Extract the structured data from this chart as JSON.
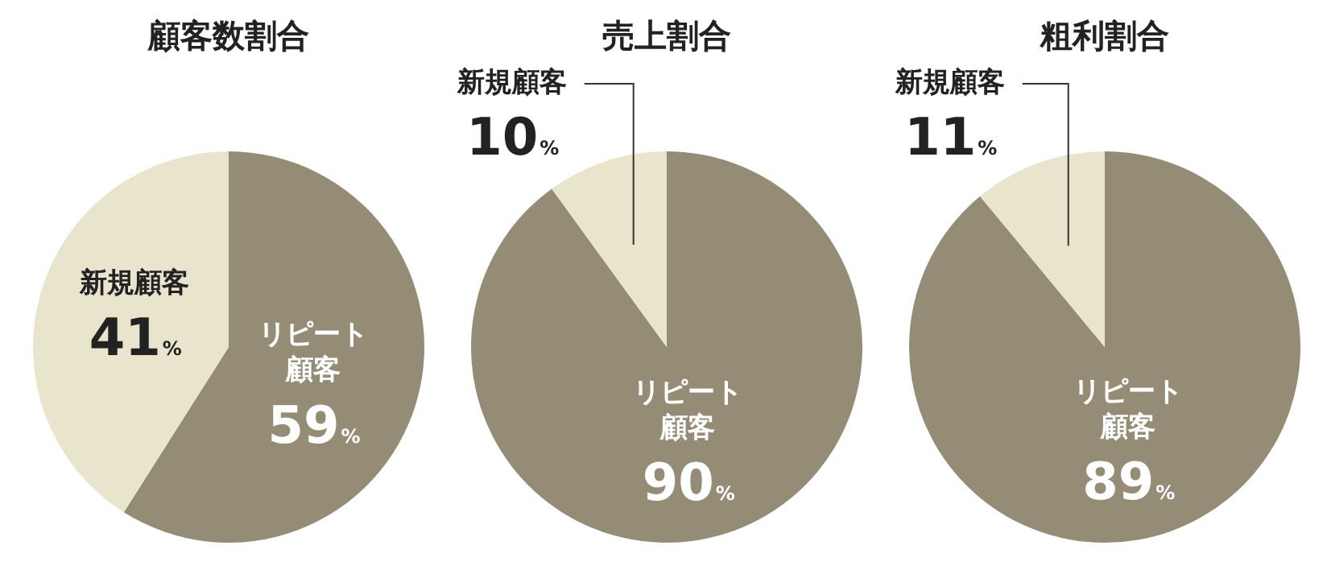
{
  "chart_data": [
    {
      "type": "pie",
      "title": "顧客数割合",
      "categories": [
        "リピート顧客",
        "新規顧客"
      ],
      "values": [
        59,
        41
      ],
      "value_labels": [
        "59%",
        "41%"
      ],
      "colors": [
        "#958c76",
        "#e8e5cc"
      ],
      "legend": false
    },
    {
      "type": "pie",
      "title": "売上割合",
      "categories": [
        "リピート顧客",
        "新規顧客"
      ],
      "values": [
        90,
        10
      ],
      "value_labels": [
        "90%",
        "10%"
      ],
      "colors": [
        "#958c76",
        "#e8e5cc"
      ],
      "legend": false
    },
    {
      "type": "pie",
      "title": "粗利割合",
      "categories": [
        "リピート顧客",
        "新規顧客"
      ],
      "values": [
        89,
        11
      ],
      "value_labels": [
        "89%",
        "11%"
      ],
      "colors": [
        "#958c76",
        "#e8e5cc"
      ],
      "legend": false
    }
  ]
}
